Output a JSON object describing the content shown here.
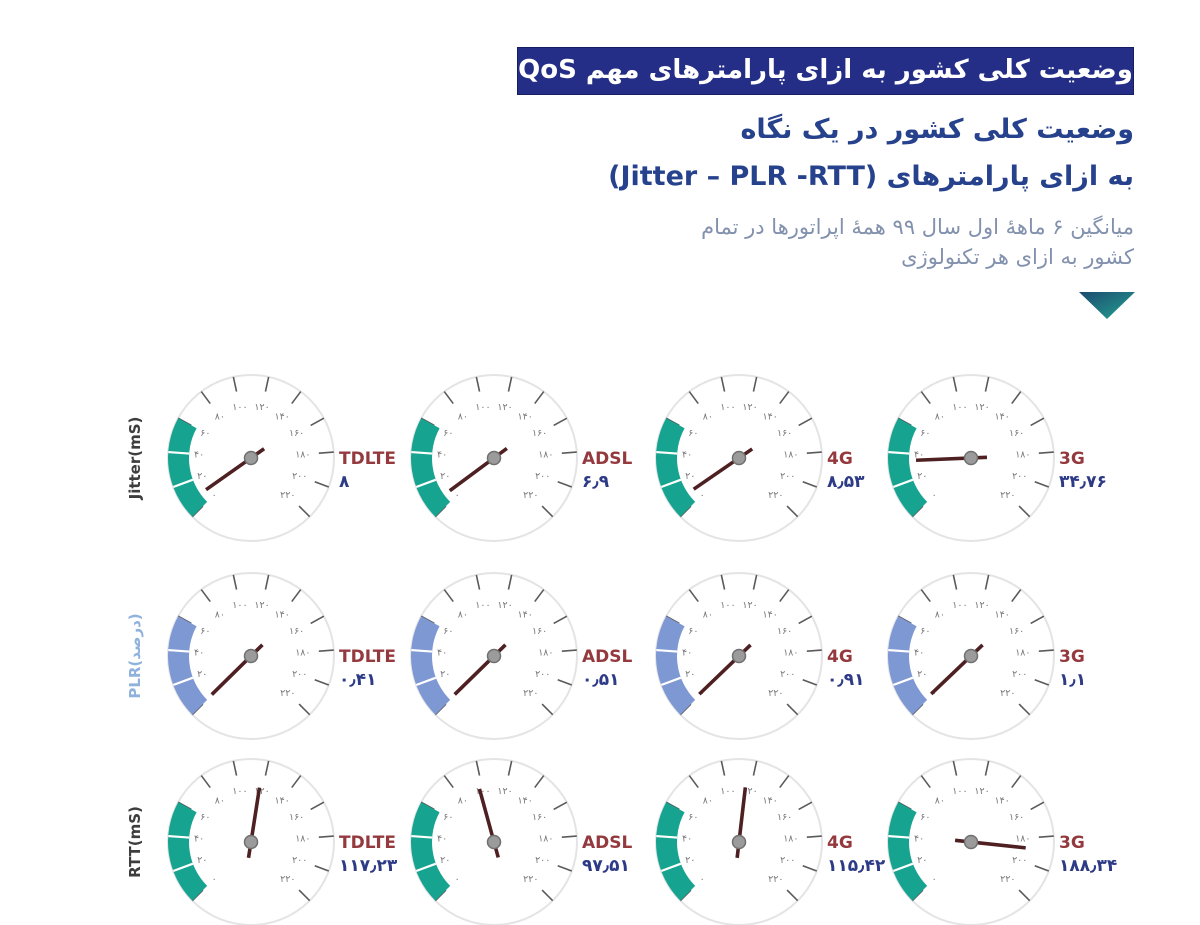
{
  "header": {
    "banner": "وضعیت کلی کشور به ازای پارامترهای مهم QoS",
    "title_line1": "وضعیت کلی کشور در یک نگاه",
    "title_line2": "به ازای پارامترهای (Jitter – PLR -RTT)",
    "desc_line1": "میانگین ۶ ماهۀ اول سال ۹۹ همۀ اپراتورها در تمام",
    "desc_line2": "کشور به ازای هر تکنولوژی",
    "banner_bg": "#242e86",
    "title_color": "#27428d",
    "desc_color": "#8291ad",
    "arrow_color_start": "#1d4a70",
    "arrow_color_end": "#23a390"
  },
  "chart_data": {
    "type": "gauge-grid",
    "title": "وضعیت کلی کشور به ازای پارامترهای مهم QoS",
    "gauge_scale": {
      "min": 0,
      "max": 220,
      "tick_step": 20,
      "start_bearing_deg": 225,
      "sweep_deg": 270,
      "band_from": 0,
      "band_to": 60
    },
    "tick_values": [
      0,
      20,
      40,
      60,
      80,
      100,
      120,
      140,
      160,
      180,
      200,
      220
    ],
    "tick_labels": [
      "۰",
      "۲۰",
      "۴۰",
      "۶۰",
      "۸۰",
      "۱۰۰",
      "۱۲۰",
      "۱۴۰",
      "۱۶۰",
      "۱۸۰",
      "۲۰۰",
      "۲۲۰"
    ],
    "rows": [
      {
        "label": "Jitter(mS)",
        "label_color": "#3d3d3d",
        "band_color": "#16a390",
        "gauges": [
          {
            "tech": "TDLTE",
            "value": 8,
            "display": "۸"
          },
          {
            "tech": "ADSL",
            "value": 6.9,
            "display": "۶٫۹"
          },
          {
            "tech": "4G",
            "value": 8.53,
            "display": "۸٫۵۳"
          },
          {
            "tech": "3G",
            "value": 34.76,
            "display": "۳۴٫۷۶"
          }
        ]
      },
      {
        "label": "PLR(درصد)",
        "label_color": "#8fb2dd",
        "band_color": "#7d98d2",
        "gauges": [
          {
            "tech": "TDLTE",
            "value": 0.41,
            "display": "۰٫۴۱"
          },
          {
            "tech": "ADSL",
            "value": 0.51,
            "display": "۰٫۵۱"
          },
          {
            "tech": "4G",
            "value": 0.91,
            "display": "۰٫۹۱"
          },
          {
            "tech": "3G",
            "value": 1.1,
            "display": "۱٫۱"
          }
        ]
      },
      {
        "label": "RTT(mS)",
        "label_color": "#3d3d3d",
        "band_color": "#16a390",
        "gauges": [
          {
            "tech": "TDLTE",
            "value": 117.23,
            "display": "۱۱۷٫۲۳"
          },
          {
            "tech": "ADSL",
            "value": 97.51,
            "display": "۹۷٫۵۱"
          },
          {
            "tech": "4G",
            "value": 115.42,
            "display": "۱۱۵٫۴۲"
          },
          {
            "tech": "3G",
            "value": 188.34,
            "display": "۱۸۸٫۳۴"
          }
        ]
      }
    ],
    "tech_label_color": "#943a3f",
    "value_color": "#2d3a86",
    "needle_color": "#4e2022",
    "hub_color": "#9b9b9b",
    "tick_color": "#5a5a5a",
    "tick_label_color": "#777777",
    "circle_stroke": "#e4e4e6"
  }
}
